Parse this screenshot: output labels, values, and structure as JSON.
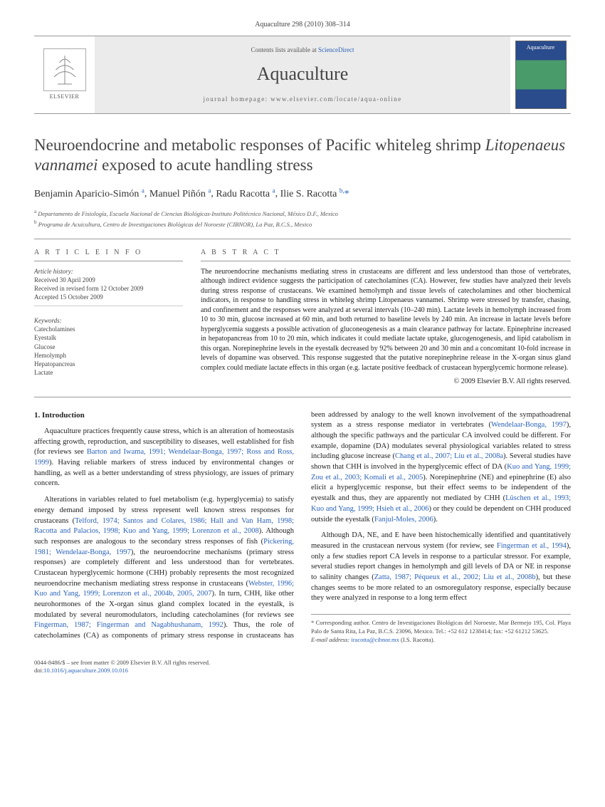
{
  "citation": "Aquaculture 298 (2010) 308–314",
  "banner": {
    "publisher": "ELSEVIER",
    "contents_prefix": "Contents lists available at ",
    "contents_link": "ScienceDirect",
    "journal": "Aquaculture",
    "homepage": "journal homepage: www.elsevier.com/locate/aqua-online",
    "cover_label": "Aquaculture"
  },
  "title_pre": "Neuroendocrine and metabolic responses of Pacific whiteleg shrimp ",
  "title_italic": "Litopenaeus vannamei",
  "title_post": " exposed to acute handling stress",
  "authors": [
    {
      "name": "Benjamin Aparicio-Simón",
      "affil": "a"
    },
    {
      "name": "Manuel Piñón",
      "affil": "a"
    },
    {
      "name": "Radu Racotta",
      "affil": "a"
    },
    {
      "name": "Ilie S. Racotta",
      "affil": "b,",
      "corresponding": true
    }
  ],
  "affiliations": [
    {
      "sup": "a",
      "text": "Departamento de Fisiología, Escuela Nacional de Ciencias Biológicas-Instituto Politécnico Nacional, México D.F., Mexico"
    },
    {
      "sup": "b",
      "text": "Programa de Acuicultura, Centro de Investigaciones Biológicas del Noroeste (CIBNOR), La Paz, B.C.S., Mexico"
    }
  ],
  "article_info_heading": "A R T I C L E   I N F O",
  "abstract_heading": "A B S T R A C T",
  "history_label": "Article history:",
  "history": [
    "Received 30 April 2009",
    "Received in revised form 12 October 2009",
    "Accepted 15 October 2009"
  ],
  "keywords_label": "Keywords:",
  "keywords": [
    "Catecholamines",
    "Eyestalk",
    "Glucose",
    "Hemolymph",
    "Hepatopancreas",
    "Lactate"
  ],
  "abstract": "The neuroendocrine mechanisms mediating stress in crustaceans are different and less understood than those of vertebrates, although indirect evidence suggests the participation of catecholamines (CA). However, few studies have analyzed their levels during stress response of crustaceans. We examined hemolymph and tissue levels of catecholamines and other biochemical indicators, in response to handling stress in whiteleg shrimp Litopenaeus vannamei. Shrimp were stressed by transfer, chasing, and confinement and the responses were analyzed at several intervals (10–240 min). Lactate levels in hemolymph increased from 10 to 30 min, glucose increased at 60 min, and both returned to baseline levels by 240 min. An increase in lactate levels before hyperglycemia suggests a possible activation of gluconeogenesis as a main clearance pathway for lactate. Epinephrine increased in hepatopancreas from 10 to 20 min, which indicates it could mediate lactate uptake, glucogenogenesis, and lipid catabolism in this organ. Norepinephrine levels in the eyestalk decreased by 92% between 20 and 30 min and a concomitant 10-fold increase in levels of dopamine was observed. This response suggested that the putative norepinephrine release in the X-organ sinus gland complex could mediate lactate effects in this organ (e.g. lactate positive feedback of crustacean hyperglycemic hormone release).",
  "copyright": "© 2009 Elsevier B.V. All rights reserved.",
  "intro_heading": "1. Introduction",
  "para1a": "Aquaculture practices frequently cause stress, which is an alteration of homeostasis affecting growth, reproduction, and susceptibility to diseases, well established for fish (for reviews see ",
  "ref1": "Barton and Iwama, 1991; Wendelaar-Bonga, 1997; Ross and Ross, 1999",
  "para1b": "). Having reliable markers of stress induced by environmental changes or handling, as well as a better understanding of stress physiology, are issues of primary concern.",
  "para2a": "Alterations in variables related to fuel metabolism (e.g. hyperglycemia) to satisfy energy demand imposed by stress represent well known stress responses for crustaceans (",
  "ref2": "Telford, 1974; Santos and Colares, 1986; Hall and Van Ham, 1998; Racotta and Palacios, 1998; Kuo and Yang, 1999; Lorenzon et al., 2008",
  "para2b": "). Although such responses are analogous to the secondary stress responses of fish (",
  "ref3": "Pickering, 1981; Wendelaar-Bonga, 1997",
  "para2c": "), the neuroendocrine mechanisms (primary stress responses) are completely different and less understood than for vertebrates. Crustacean hyperglycemic hormone (CHH) probably represents the most recognized neuroendocrine mechanism mediating stress response in crustaceans (",
  "ref4": "Webster, 1996; Kuo and Yang, 1999; Lorenzon et al., 2004b, 2005, 2007",
  "para2d": "). In turn, CHH, like other neurohormones of the X-organ sinus gland complex located in the eyestalk, is modulated by several neuromodulators, including catecholamines (for reviews see ",
  "ref5": "Fingerman, 1987; Fingerman and Nagabhushanam, 1992",
  "para2e": "). Thus, the role of catecholamines (CA) as components of primary stress response in crustaceans has been addressed by analogy to the well known involvement of the sympathoadrenal system as a stress response mediator in vertebrates (",
  "ref6": "Wendelaar-Bonga, 1997",
  "para2f": "), although the specific pathways and the particular CA involved could be different. For example, dopamine (DA) modulates several physiological variables related to stress including glucose increase (",
  "ref7": "Chang et al., 2007; Liu et al., 2008a",
  "para2g": "). Several studies have shown that CHH is involved in the hyperglycemic effect of DA (",
  "ref8": "Kuo and Yang, 1999; Zou et al., 2003; Komali et al., 2005",
  "para2h": "). Norepinephrine (NE) and epinephrine (E) also elicit a hyperglycemic response, but their effect seems to be independent of the eyestalk and thus, they are apparently not mediated by CHH (",
  "ref9": "Lüschen et al., 1993; Kuo and Yang, 1999; Hsieh et al., 2006",
  "para2i": ") or they could be dependent on CHH produced outside the eyestalk (",
  "ref10": "Fanjul-Moles, 2006",
  "para2j": ").",
  "para3a": "Although DA, NE, and E have been histochemically identified and quantitatively measured in the crustacean nervous system (for review, see ",
  "ref11": "Fingerman et al., 1994",
  "para3b": "), only a few studies report CA levels in response to a particular stressor. For example, several studies report changes in hemolymph and gill levels of DA or NE in response to salinity changes (",
  "ref12": "Zatta, 1987; Péqueux et al., 2002; Liu et al., 2008b",
  "para3c": "), but these changes seems to be more related to an osmoregulatory response, especially because they were analyzed in response to a long term effect",
  "corr_author": "* Corresponding author. Centro de Investigaciones Biológicas del Noroeste, Mar Bermejo 195, Col. Playa Palo de Santa Rita, La Paz, B.C.S. 23096, Mexico. Tel.: +52 612 1238414; fax: +52 61212 53625.",
  "email_label": "E-mail address:",
  "email": "iracotta@cibnor.mx",
  "email_name": "(I.S. Racotta).",
  "issn_line": "0044-8486/$ – see front matter © 2009 Elsevier B.V. All rights reserved.",
  "doi_label": "doi:",
  "doi": "10.1016/j.aquaculture.2009.10.016"
}
